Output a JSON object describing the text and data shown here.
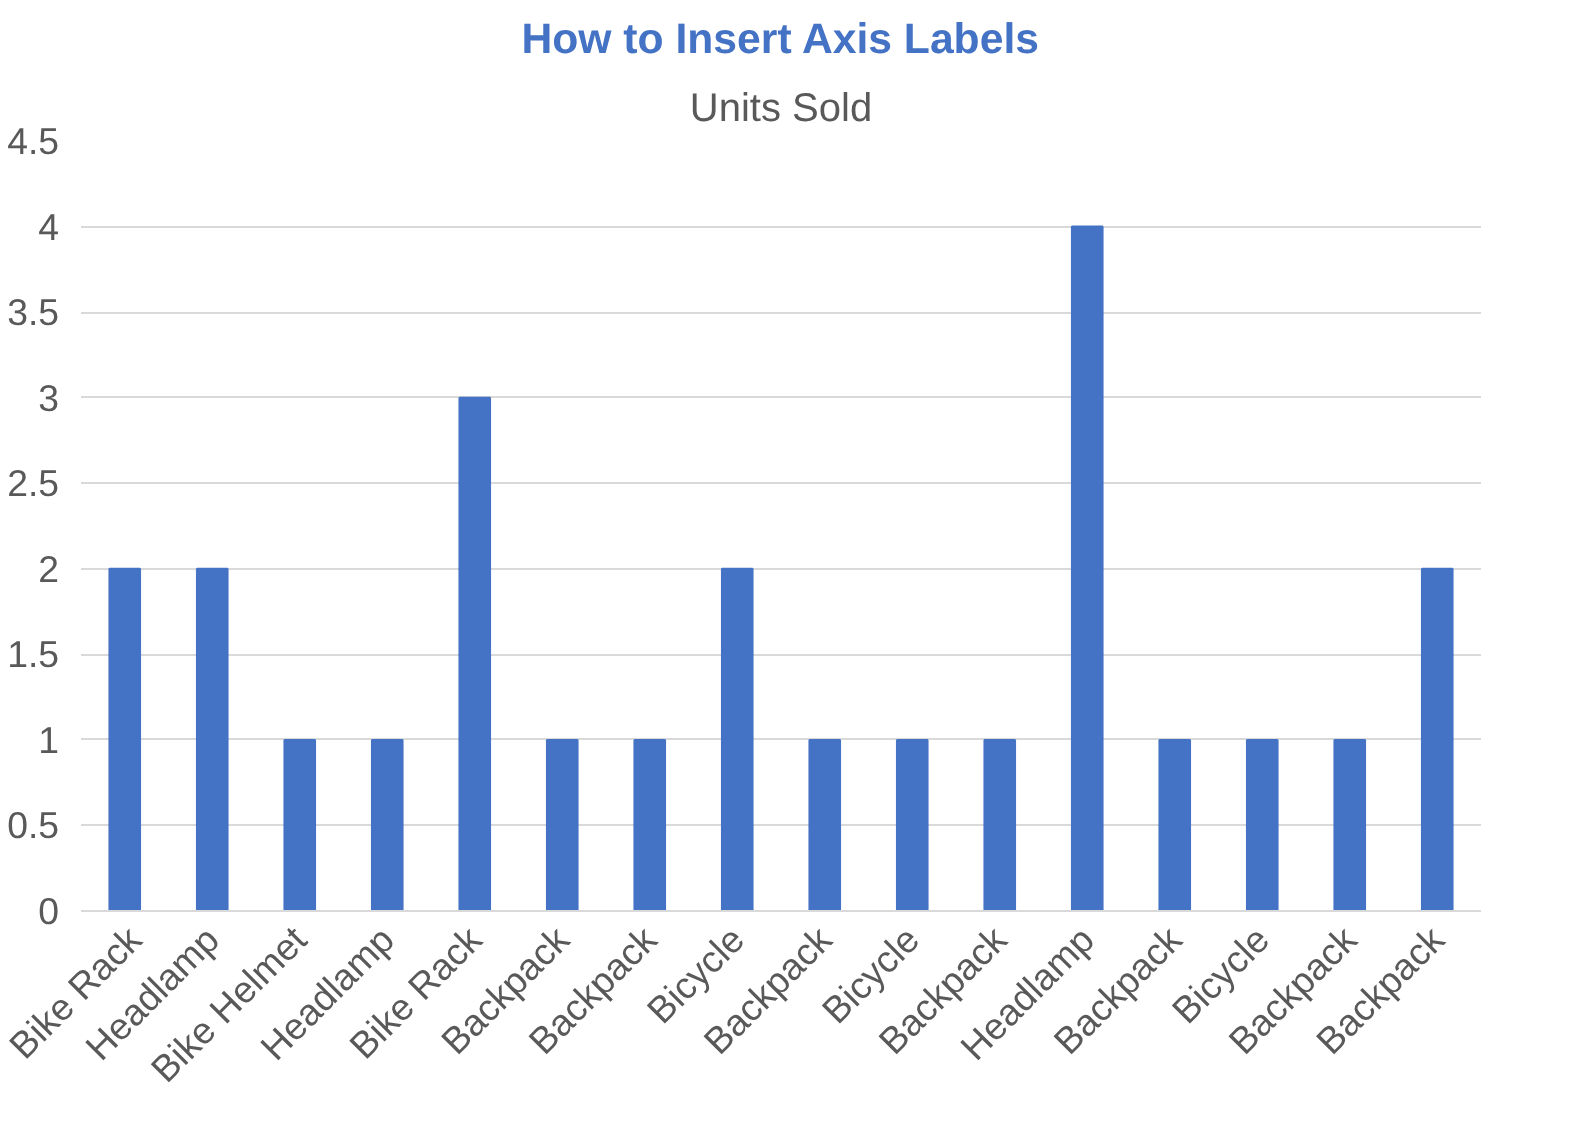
{
  "chart_data": {
    "type": "bar",
    "title": "How to Insert Axis Labels",
    "subtitle": "Units Sold",
    "categories": [
      "Bike Rack",
      "Headlamp",
      "Bike Helmet",
      "Headlamp",
      "Bike Rack",
      "Backpack",
      "Backpack",
      "Bicycle",
      "Backpack",
      "Bicycle",
      "Backpack",
      "Headlamp",
      "Backpack",
      "Bicycle",
      "Backpack",
      "Backpack"
    ],
    "values": [
      2,
      2,
      1,
      1,
      3,
      1,
      1,
      2,
      1,
      1,
      1,
      4,
      1,
      1,
      1,
      2
    ],
    "color": "#4472c4",
    "ylim": [
      0,
      4.5
    ],
    "yticks": [
      0,
      0.5,
      1,
      1.5,
      2,
      2.5,
      3,
      3.5,
      4,
      4.5
    ],
    "grid": "y"
  }
}
